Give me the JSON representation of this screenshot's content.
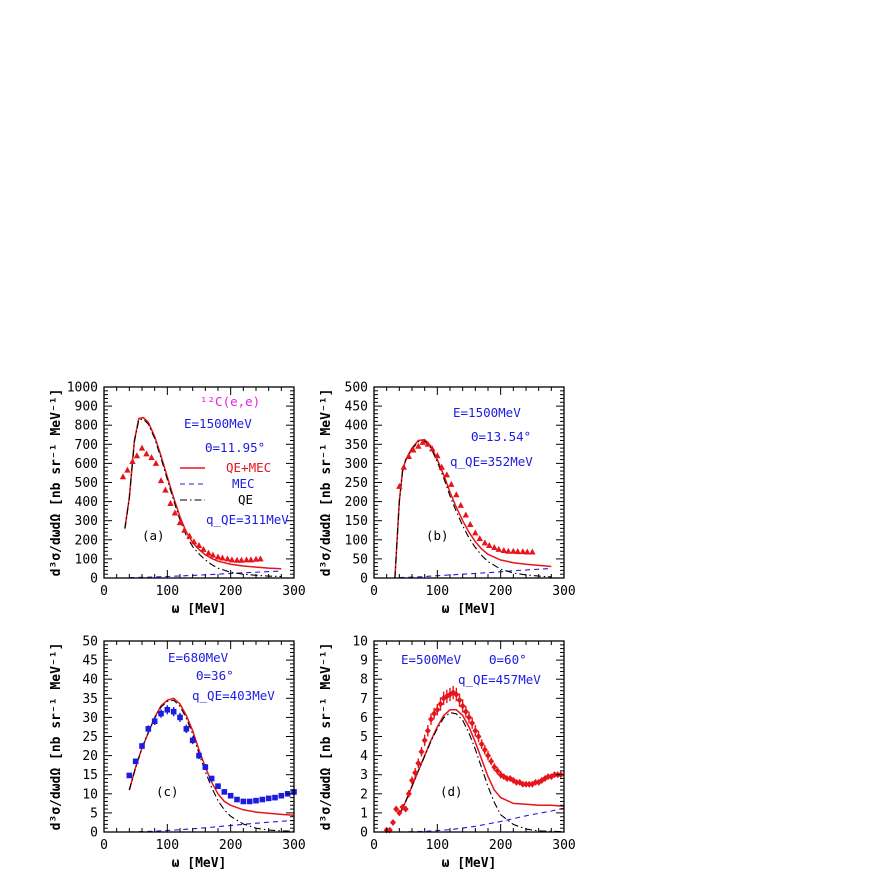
{
  "colors": {
    "red": "#e8141c",
    "blue": "#1c1ce0",
    "magenta": "#e81ce8",
    "black": "#000000"
  },
  "chart_data": [
    {
      "type": "line",
      "panel_label": "(a)",
      "xlabel": "ω [MeV]",
      "ylabel": "d³σ/dωdΩ [nb sr⁻¹ MeV⁻¹]",
      "xlim": [
        0,
        300
      ],
      "ylim": [
        0,
        1000
      ],
      "xticks": [
        0,
        100,
        200,
        300
      ],
      "yticks": [
        0,
        100,
        200,
        300,
        400,
        500,
        600,
        700,
        800,
        900,
        1000
      ],
      "annotations": {
        "reaction": "¹²C(e,e)",
        "energy": "E=1500MeV",
        "angle": "Θ=11.95°",
        "q": "q_QE=311MeV"
      },
      "legend": [
        {
          "label": "QE+MEC",
          "style": "solid",
          "color": "red"
        },
        {
          "label": "MEC",
          "style": "dashed",
          "color": "blue"
        },
        {
          "label": "QE",
          "style": "dashdot",
          "color": "black"
        }
      ],
      "series": [
        {
          "name": "QE+MEC",
          "style": "solid",
          "color": "red",
          "x": [
            33,
            40,
            48,
            55,
            62,
            70,
            80,
            90,
            100,
            110,
            120,
            130,
            140,
            150,
            160,
            170,
            180,
            200,
            220,
            240,
            260,
            280
          ],
          "y": [
            260,
            420,
            720,
            835,
            840,
            815,
            740,
            640,
            530,
            420,
            320,
            240,
            185,
            150,
            122,
            102,
            88,
            72,
            63,
            57,
            52,
            48
          ]
        },
        {
          "name": "MEC",
          "style": "dashed",
          "color": "blue",
          "x": [
            40,
            70,
            100,
            130,
            160,
            190,
            220,
            250,
            280
          ],
          "y": [
            2,
            4,
            8,
            12,
            17,
            22,
            27,
            32,
            36
          ]
        },
        {
          "name": "QE",
          "style": "dashdot",
          "color": "black",
          "x": [
            33,
            40,
            48,
            55,
            62,
            70,
            80,
            90,
            100,
            110,
            120,
            130,
            140,
            150,
            160,
            170,
            180,
            200,
            220,
            240,
            260,
            280
          ],
          "y": [
            258,
            418,
            714,
            828,
            832,
            806,
            730,
            628,
            516,
            405,
            303,
            222,
            164,
            126,
            95,
            70,
            52,
            30,
            20,
            14,
            10,
            8
          ]
        },
        {
          "name": "data",
          "style": "triangle",
          "color": "red",
          "x": [
            30,
            37,
            45,
            52,
            60,
            67,
            75,
            82,
            90,
            97,
            105,
            112,
            120,
            127,
            135,
            142,
            150,
            157,
            165,
            172,
            180,
            187,
            195,
            202,
            210,
            217,
            225,
            232,
            240,
            247
          ],
          "y": [
            530,
            565,
            610,
            640,
            680,
            650,
            630,
            600,
            510,
            460,
            390,
            340,
            290,
            250,
            220,
            190,
            170,
            150,
            130,
            120,
            110,
            105,
            100,
            95,
            93,
            93,
            95,
            95,
            98,
            100
          ]
        }
      ]
    },
    {
      "type": "line",
      "panel_label": "(b)",
      "xlabel": "ω [MeV]",
      "ylabel": "d³σ/dωdΩ [nb sr⁻¹ MeV⁻¹]",
      "xlim": [
        0,
        300
      ],
      "ylim": [
        0,
        500
      ],
      "xticks": [
        0,
        100,
        200,
        300
      ],
      "yticks": [
        0,
        50,
        100,
        150,
        200,
        250,
        300,
        350,
        400,
        450,
        500
      ],
      "annotations": {
        "energy": "E=1500MeV",
        "angle": "Θ=13.54°",
        "q": "q_QE=352MeV"
      },
      "series": [
        {
          "name": "QE+MEC",
          "style": "solid",
          "color": "red",
          "x": [
            33,
            40,
            45,
            50,
            60,
            70,
            80,
            90,
            100,
            110,
            120,
            130,
            140,
            150,
            160,
            170,
            180,
            200,
            220,
            240,
            260,
            280
          ],
          "y": [
            0,
            200,
            280,
            310,
            340,
            360,
            362,
            345,
            310,
            270,
            225,
            185,
            150,
            120,
            95,
            76,
            62,
            47,
            40,
            36,
            33,
            30
          ]
        },
        {
          "name": "MEC",
          "style": "dashed",
          "color": "blue",
          "x": [
            40,
            70,
            100,
            130,
            160,
            190,
            220,
            250,
            280
          ],
          "y": [
            1,
            3,
            6,
            9,
            12,
            15,
            19,
            22,
            25
          ]
        },
        {
          "name": "QE",
          "style": "dashdot",
          "color": "black",
          "x": [
            33,
            40,
            45,
            50,
            60,
            70,
            80,
            90,
            100,
            110,
            120,
            130,
            140,
            150,
            160,
            170,
            180,
            200,
            220,
            240,
            260,
            280
          ],
          "y": [
            0,
            199,
            278,
            308,
            337,
            357,
            358,
            340,
            304,
            262,
            215,
            174,
            137,
            105,
            80,
            59,
            43,
            23,
            13,
            8,
            5,
            3
          ]
        },
        {
          "name": "data",
          "style": "triangle",
          "color": "red",
          "x": [
            40,
            47,
            55,
            62,
            70,
            77,
            85,
            92,
            100,
            107,
            115,
            122,
            130,
            137,
            145,
            152,
            160,
            167,
            175,
            182,
            190,
            197,
            205,
            212,
            220,
            227,
            235,
            242,
            250
          ],
          "y": [
            240,
            290,
            318,
            335,
            345,
            355,
            350,
            338,
            320,
            290,
            270,
            245,
            218,
            190,
            165,
            140,
            118,
            103,
            92,
            85,
            80,
            75,
            72,
            70,
            70,
            69,
            69,
            68,
            68
          ]
        }
      ]
    },
    {
      "type": "line",
      "panel_label": "(c)",
      "xlabel": "ω [MeV]",
      "ylabel": "d³σ/dωdΩ [nb sr⁻¹ MeV⁻¹]",
      "xlim": [
        0,
        300
      ],
      "ylim": [
        0,
        50
      ],
      "xticks": [
        0,
        100,
        200,
        300
      ],
      "yticks": [
        0,
        5,
        10,
        15,
        20,
        25,
        30,
        35,
        40,
        45,
        50
      ],
      "annotations": {
        "energy": "E=680MeV",
        "angle": "Θ=36°",
        "q": "q_QE=403MeV"
      },
      "series": [
        {
          "name": "QE+MEC",
          "style": "solid",
          "color": "red",
          "x": [
            40,
            50,
            60,
            70,
            80,
            90,
            100,
            110,
            120,
            130,
            140,
            150,
            160,
            170,
            180,
            190,
            200,
            220,
            240,
            260,
            280,
            300
          ],
          "y": [
            11,
            17,
            22,
            26,
            30,
            33,
            34.5,
            35,
            33.5,
            30.5,
            26.5,
            21.5,
            17,
            13,
            10,
            8,
            7,
            5.8,
            5.2,
            4.9,
            4.6,
            4.4
          ]
        },
        {
          "name": "MEC",
          "style": "dashed",
          "color": "blue",
          "x": [
            40,
            80,
            120,
            160,
            200,
            240,
            280,
            300
          ],
          "y": [
            0,
            0.2,
            0.6,
            1.1,
            1.7,
            2.3,
            2.8,
            3.0
          ]
        },
        {
          "name": "QE",
          "style": "dashdot",
          "color": "black",
          "x": [
            40,
            50,
            60,
            70,
            80,
            90,
            100,
            110,
            120,
            130,
            140,
            150,
            160,
            170,
            180,
            190,
            200,
            220,
            240,
            260,
            280,
            300
          ],
          "y": [
            11,
            17,
            22,
            26,
            29.8,
            32.7,
            34.2,
            34.5,
            32.9,
            29.8,
            25.6,
            20.5,
            15.8,
            11.6,
            8.2,
            5.8,
            4.1,
            2.1,
            1.0,
            0.5,
            0.3,
            0.2
          ]
        },
        {
          "name": "data",
          "style": "square",
          "color": "blue",
          "x": [
            40,
            50,
            60,
            70,
            80,
            90,
            100,
            110,
            120,
            130,
            140,
            150,
            160,
            170,
            180,
            190,
            200,
            210,
            220,
            230,
            240,
            250,
            260,
            270,
            280,
            290,
            300
          ],
          "y": [
            14.8,
            18.5,
            22.5,
            27,
            29,
            31,
            32,
            31.5,
            30,
            27,
            24,
            20,
            17,
            14,
            12,
            10.5,
            9.5,
            8.5,
            8,
            8,
            8.2,
            8.5,
            8.8,
            9,
            9.5,
            10,
            10.5
          ],
          "err": [
            0.6,
            0.7,
            0.8,
            0.9,
            1.0,
            1.1,
            1.2,
            1.2,
            1.2,
            1.1,
            1.0,
            0.9,
            0.8,
            0.7,
            0.6,
            0.5,
            0.5,
            0.5,
            0.5,
            0.5,
            0.5,
            0.5,
            0.5,
            0.5,
            0.5,
            0.5,
            0.5
          ]
        }
      ]
    },
    {
      "type": "line",
      "panel_label": "(d)",
      "xlabel": "ω [MeV]",
      "ylabel": "d³σ/dωdΩ [nb sr⁻¹ MeV⁻¹]",
      "xlim": [
        0,
        300
      ],
      "ylim": [
        0,
        10
      ],
      "xticks": [
        0,
        100,
        200,
        300
      ],
      "yticks": [
        0,
        1,
        2,
        3,
        4,
        5,
        6,
        7,
        8,
        9,
        10
      ],
      "annotations": {
        "energy": "E=500MeV",
        "angle": "Θ=60°",
        "q": "q_QE=457MeV"
      },
      "series": [
        {
          "name": "QE+MEC",
          "style": "solid",
          "color": "red",
          "x": [
            40,
            50,
            60,
            70,
            80,
            90,
            100,
            110,
            120,
            130,
            140,
            150,
            160,
            170,
            180,
            190,
            200,
            220,
            240,
            260,
            280,
            300
          ],
          "y": [
            0.9,
            1.6,
            2.4,
            3.2,
            4.0,
            4.8,
            5.5,
            6.1,
            6.4,
            6.4,
            6.1,
            5.5,
            4.7,
            3.8,
            2.9,
            2.2,
            1.8,
            1.5,
            1.45,
            1.4,
            1.4,
            1.35
          ]
        },
        {
          "name": "MEC",
          "style": "dashed",
          "color": "blue",
          "x": [
            40,
            80,
            120,
            160,
            200,
            240,
            280,
            300
          ],
          "y": [
            0,
            0.03,
            0.12,
            0.3,
            0.55,
            0.85,
            1.1,
            1.25
          ]
        },
        {
          "name": "QE",
          "style": "dashdot",
          "color": "black",
          "x": [
            40,
            50,
            60,
            70,
            80,
            90,
            100,
            110,
            120,
            130,
            140,
            150,
            160,
            170,
            180,
            190,
            200,
            220,
            240,
            260,
            280,
            300
          ],
          "y": [
            0.9,
            1.6,
            2.4,
            3.2,
            3.97,
            4.75,
            5.42,
            5.98,
            6.25,
            6.19,
            5.85,
            5.18,
            4.33,
            3.35,
            2.38,
            1.55,
            0.9,
            0.4,
            0.15,
            0.06,
            0.03,
            0.02
          ]
        },
        {
          "name": "data",
          "style": "diamond",
          "color": "red",
          "x": [
            20,
            25,
            30,
            35,
            40,
            45,
            50,
            55,
            60,
            65,
            70,
            75,
            80,
            85,
            90,
            95,
            100,
            105,
            110,
            115,
            120,
            125,
            130,
            135,
            140,
            145,
            150,
            155,
            160,
            165,
            170,
            175,
            180,
            185,
            190,
            195,
            200,
            205,
            210,
            215,
            220,
            225,
            230,
            235,
            240,
            245,
            250,
            255,
            260,
            265,
            270,
            275,
            280,
            285,
            290,
            295
          ],
          "y": [
            0.1,
            0.1,
            0.5,
            1.2,
            1.0,
            1.3,
            1.2,
            2.0,
            2.7,
            3.1,
            3.6,
            4.2,
            4.8,
            5.3,
            5.9,
            6.2,
            6.4,
            6.7,
            7.0,
            7.1,
            7.2,
            7.3,
            7.2,
            6.9,
            6.6,
            6.3,
            6.0,
            5.7,
            5.3,
            5.0,
            4.6,
            4.3,
            4.0,
            3.7,
            3.4,
            3.2,
            3.0,
            2.9,
            2.8,
            2.8,
            2.7,
            2.6,
            2.6,
            2.5,
            2.5,
            2.5,
            2.5,
            2.6,
            2.6,
            2.7,
            2.8,
            2.9,
            2.9,
            3.0,
            3.0,
            3.0
          ],
          "err": [
            0.05,
            0.05,
            0.12,
            0.15,
            0.15,
            0.15,
            0.15,
            0.2,
            0.2,
            0.25,
            0.25,
            0.25,
            0.3,
            0.3,
            0.3,
            0.3,
            0.3,
            0.35,
            0.35,
            0.35,
            0.35,
            0.35,
            0.35,
            0.35,
            0.35,
            0.3,
            0.3,
            0.3,
            0.3,
            0.3,
            0.25,
            0.25,
            0.25,
            0.2,
            0.2,
            0.2,
            0.2,
            0.15,
            0.15,
            0.15,
            0.15,
            0.15,
            0.15,
            0.15,
            0.15,
            0.15,
            0.15,
            0.15,
            0.15,
            0.15,
            0.15,
            0.15,
            0.15,
            0.15,
            0.15,
            0.15
          ]
        }
      ]
    }
  ]
}
